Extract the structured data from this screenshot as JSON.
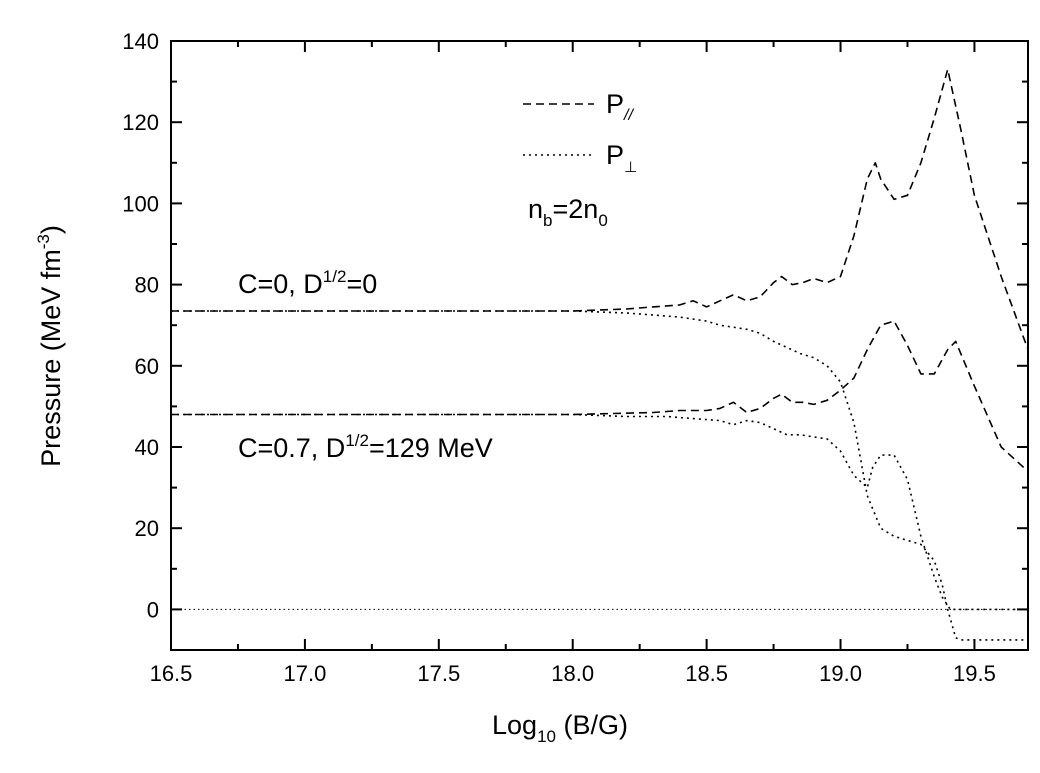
{
  "chart_data": {
    "type": "line",
    "title": "",
    "xlabel": {
      "main": "Log",
      "sub": "10",
      "rest": " (B/G)"
    },
    "ylabel": {
      "main": "Pressure (MeV fm",
      "sup": "-3",
      "rest": ")"
    },
    "xlim": [
      16.5,
      19.7
    ],
    "ylim": [
      -10,
      140
    ],
    "xticks": [
      16.5,
      17.0,
      17.5,
      18.0,
      18.5,
      19.0,
      19.5
    ],
    "xtick_labels": [
      "16.5",
      "17.0",
      "17.5",
      "18.0",
      "18.5",
      "19.0",
      "19.5"
    ],
    "yticks": [
      0,
      20,
      40,
      60,
      80,
      100,
      120,
      140
    ],
    "ytick_labels": [
      "0",
      "20",
      "40",
      "60",
      "80",
      "100",
      "120",
      "140"
    ],
    "legend": {
      "position": "top-center",
      "entries": [
        {
          "main": "P",
          "sub": "//",
          "style": "dashed"
        },
        {
          "main": "P",
          "sub": "⊥",
          "style": "dotted"
        }
      ],
      "note": {
        "main": "n",
        "sub1": "b",
        "mid": "=2n",
        "sub2": "0"
      }
    },
    "annotations": [
      {
        "id": "c0",
        "main": "C=0, D",
        "sup": "1/2",
        "rest": "=0"
      },
      {
        "id": "c07",
        "main": "C=0.7, D",
        "sup": "1/2",
        "rest": "=129 MeV"
      }
    ],
    "series": [
      {
        "group": "C=0",
        "style": "dashed",
        "x": [
          16.5,
          18.0,
          18.2,
          18.3,
          18.4,
          18.45,
          18.5,
          18.55,
          18.6,
          18.65,
          18.7,
          18.75,
          18.78,
          18.82,
          18.86,
          18.9,
          18.95,
          19.0,
          19.05,
          19.1,
          19.13,
          19.15,
          19.2,
          19.25,
          19.3,
          19.35,
          19.4,
          19.45,
          19.5,
          19.6,
          19.7
        ],
        "y": [
          73.5,
          73.5,
          74,
          74.5,
          75,
          76,
          74.5,
          76,
          77.5,
          76,
          77,
          80.5,
          82,
          80,
          80.5,
          81.5,
          80.5,
          82,
          92,
          106,
          110,
          106,
          101,
          102,
          110,
          121,
          133,
          118,
          102,
          82,
          64
        ]
      },
      {
        "group": "C=0",
        "style": "dotted",
        "x": [
          16.5,
          18.0,
          18.2,
          18.3,
          18.4,
          18.5,
          18.55,
          18.6,
          18.65,
          18.7,
          18.75,
          18.8,
          18.85,
          18.9,
          18.95,
          19.0,
          19.05,
          19.1,
          19.15,
          19.2,
          19.25,
          19.3,
          19.35,
          19.38,
          19.4,
          19.43,
          19.45,
          19.5,
          19.7
        ],
        "y": [
          73.5,
          73.5,
          73,
          72.5,
          72,
          71,
          70,
          69.5,
          69,
          68,
          66,
          64.5,
          63,
          62,
          60,
          56,
          46,
          28,
          20,
          18,
          17,
          16,
          12,
          6,
          0,
          -7,
          -7.5,
          -7.5,
          -7.5
        ]
      },
      {
        "group": "C=0.7",
        "style": "dashed",
        "x": [
          16.5,
          18.0,
          18.3,
          18.4,
          18.5,
          18.55,
          18.6,
          18.65,
          18.7,
          18.75,
          18.78,
          18.82,
          18.86,
          18.9,
          18.95,
          19.0,
          19.05,
          19.1,
          19.15,
          19.2,
          19.25,
          19.3,
          19.35,
          19.4,
          19.43,
          19.5,
          19.6,
          19.7
        ],
        "y": [
          48,
          48,
          48.5,
          49,
          49,
          49.5,
          51,
          48.5,
          49.5,
          52,
          53,
          51,
          51,
          50.5,
          51.5,
          54,
          57,
          64,
          70,
          71,
          65,
          58,
          58,
          64,
          66,
          55,
          40,
          34
        ]
      },
      {
        "group": "C=0.7",
        "style": "dotted",
        "x": [
          16.5,
          18.0,
          18.2,
          18.35,
          18.45,
          18.55,
          18.6,
          18.65,
          18.7,
          18.75,
          18.8,
          18.85,
          18.9,
          18.95,
          19.0,
          19.05,
          19.1,
          19.12,
          19.15,
          19.2,
          19.25,
          19.3,
          19.35,
          19.38,
          19.41,
          19.45,
          19.5,
          19.7
        ],
        "y": [
          48,
          48,
          47.5,
          47.5,
          47,
          46.5,
          45.5,
          46.5,
          46,
          44.5,
          43,
          43,
          42.5,
          42,
          39,
          33,
          30,
          35,
          38,
          38,
          32,
          18,
          8,
          3,
          0,
          0,
          0,
          0
        ]
      },
      {
        "group": "zero-line",
        "style": "dotted-thin",
        "x": [
          16.5,
          19.7
        ],
        "y": [
          0,
          0
        ]
      }
    ],
    "grid": false
  }
}
